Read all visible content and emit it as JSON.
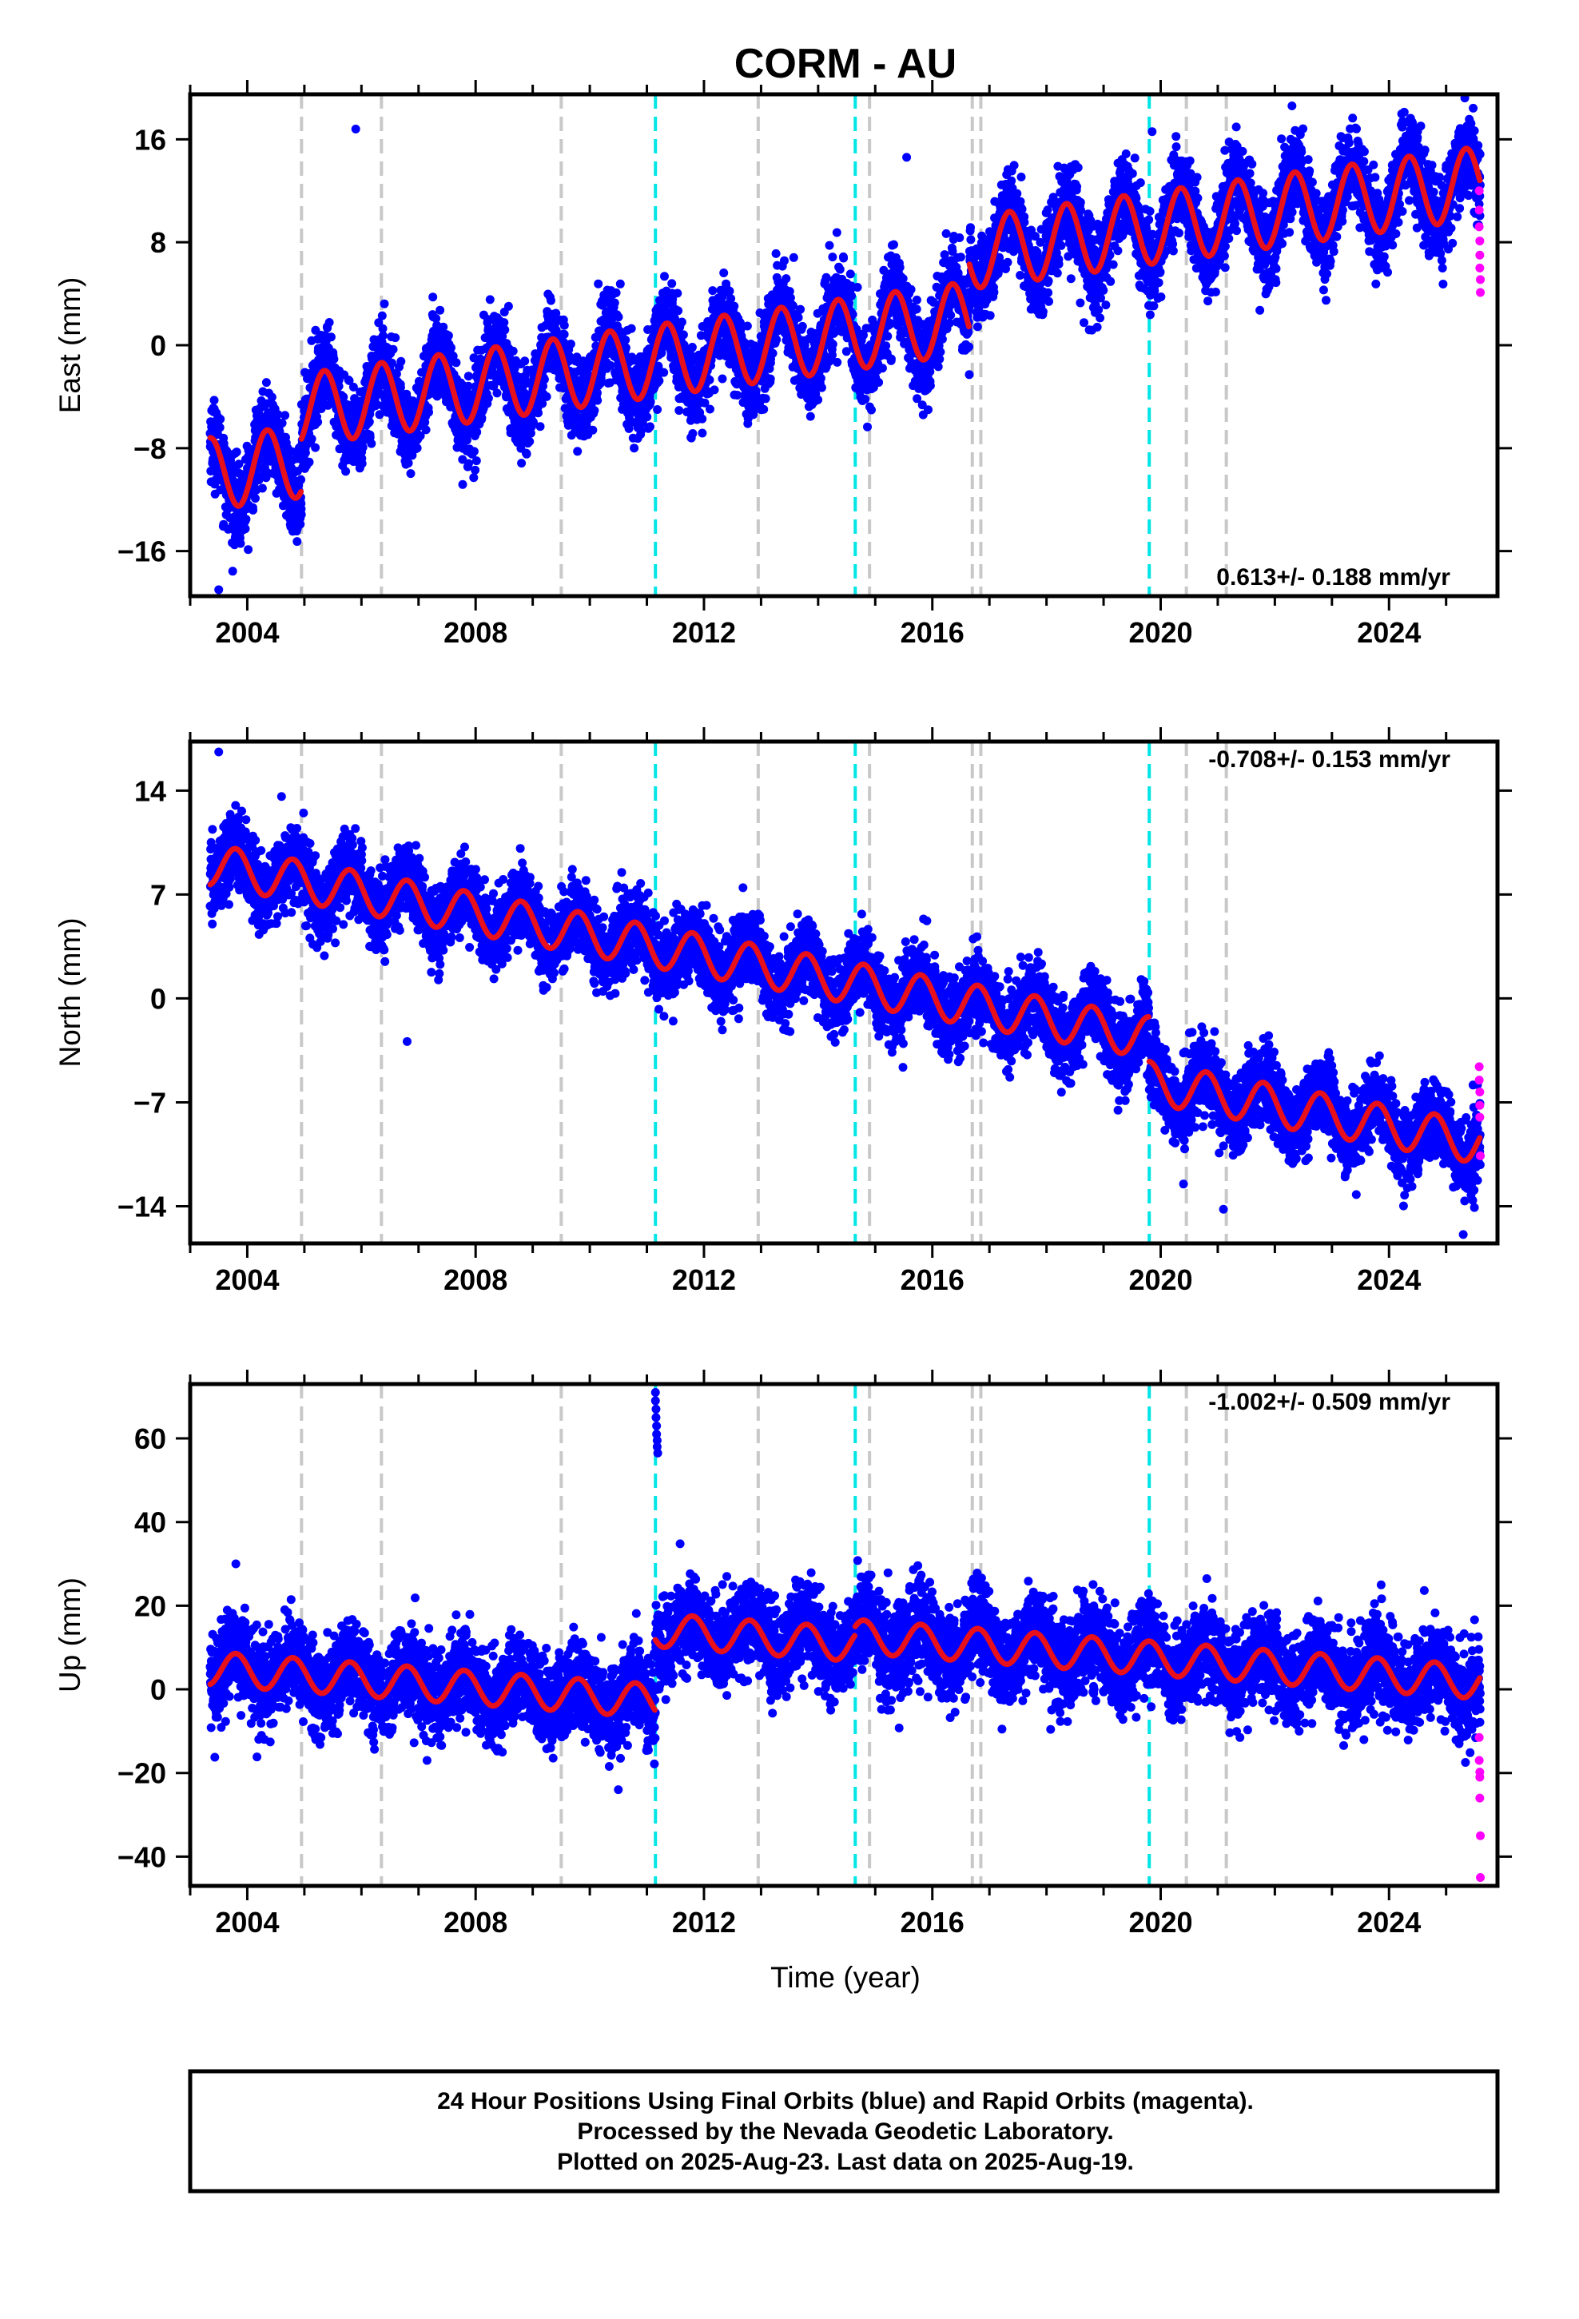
{
  "title": "CORM - AU",
  "xlabel": "Time (year)",
  "colors": {
    "final_orbits": "#0000ff",
    "rapid_orbits": "#ff00ff",
    "model_fit": "#e8101a",
    "equipment_change": "#c8c8c8",
    "earthquake": "#00e5e5"
  },
  "footer": {
    "line1": "24 Hour Positions Using Final Orbits (blue) and Rapid Orbits (magenta).",
    "line2": "Processed by the Nevada Geodetic Laboratory.",
    "line3": "Plotted on 2025-Aug-23. Last data on 2025-Aug-19."
  },
  "chart_data": [
    {
      "type": "scatter",
      "component": "east",
      "ylabel": "East (mm)",
      "ylim": [
        -19.5,
        19.5
      ],
      "yticks": [
        -16,
        -8,
        0,
        8,
        16
      ],
      "xlim": [
        2003.0,
        2025.9
      ],
      "xticks": [
        2004,
        2008,
        2012,
        2016,
        2020,
        2024
      ],
      "rate_label": "0.613+/- 0.188 mm/yr",
      "rate_position": "bottom-right",
      "model": {
        "start": 2003.35,
        "end": 2025.6,
        "trend_start": -10.0,
        "rate": 0.613,
        "annual_amplitude": 2.8,
        "annual_phase_year": 0.1,
        "offsets": [
          {
            "year": 2004.95,
            "value": 4.0
          },
          {
            "year": 2016.65,
            "value": 5.0
          }
        ]
      },
      "scatter": {
        "noise_sd": 1.6,
        "spacing_years": 0.0027
      },
      "rapid_orbits": [
        {
          "x": 2025.58,
          "y": 12.0
        },
        {
          "x": 2025.58,
          "y": 10.5
        },
        {
          "x": 2025.58,
          "y": 9.2
        },
        {
          "x": 2025.59,
          "y": 8.1
        },
        {
          "x": 2025.59,
          "y": 7.0
        },
        {
          "x": 2025.59,
          "y": 6.0
        },
        {
          "x": 2025.6,
          "y": 5.1
        },
        {
          "x": 2025.6,
          "y": 4.1
        }
      ],
      "outliers": [
        {
          "x": 2005.9,
          "y": 16.8
        },
        {
          "x": 2019.85,
          "y": 16.6
        },
        {
          "x": 2022.3,
          "y": 18.6
        },
        {
          "x": 2015.55,
          "y": 14.6
        },
        {
          "x": 2003.5,
          "y": -19.0
        },
        {
          "x": 2021.2,
          "y": 15.8
        }
      ]
    },
    {
      "type": "scatter",
      "component": "north",
      "ylabel": "North (mm)",
      "ylim": [
        -16.5,
        17.3
      ],
      "yticks": [
        -14,
        -7,
        0,
        7,
        14
      ],
      "xlim": [
        2003.0,
        2025.9
      ],
      "xticks": [
        2004,
        2008,
        2012,
        2016,
        2020,
        2024
      ],
      "rate_label": "-0.708+/- 0.153 mm/yr",
      "rate_position": "top-right",
      "model": {
        "start": 2003.35,
        "end": 2025.6,
        "trend_start": 9.0,
        "rate": -0.708,
        "annual_amplitude": 1.4,
        "annual_phase_year": 0.55,
        "offsets": [
          {
            "year": 2019.8,
            "value": -3.0
          }
        ]
      },
      "scatter": {
        "noise_sd": 1.25,
        "spacing_years": 0.0027
      },
      "rapid_orbits": [
        {
          "x": 2025.58,
          "y": -4.6
        },
        {
          "x": 2025.58,
          "y": -5.5
        },
        {
          "x": 2025.59,
          "y": -6.3
        },
        {
          "x": 2025.59,
          "y": -7.2
        },
        {
          "x": 2025.59,
          "y": -8.0
        },
        {
          "x": 2025.6,
          "y": -10.6
        }
      ],
      "outliers": [
        {
          "x": 2003.5,
          "y": 16.6
        },
        {
          "x": 2006.8,
          "y": -2.9
        },
        {
          "x": 2020.4,
          "y": -12.5
        },
        {
          "x": 2021.1,
          "y": -14.2
        },
        {
          "x": 2025.3,
          "y": -15.9
        },
        {
          "x": 2004.6,
          "y": 13.6
        }
      ]
    },
    {
      "type": "scatter",
      "component": "up",
      "ylabel": "Up (mm)",
      "ylim": [
        -47,
        73
      ],
      "yticks": [
        -40,
        -20,
        0,
        20,
        40,
        60
      ],
      "xlim": [
        2003.0,
        2025.9
      ],
      "xticks": [
        2004,
        2008,
        2012,
        2016,
        2020,
        2024
      ],
      "rate_label": "-1.002+/- 0.509 mm/yr",
      "rate_position": "top-right",
      "model": {
        "start": 2003.35,
        "end": 2025.6,
        "trend_start": 5.0,
        "rate": -1.002,
        "annual_amplitude": 4.0,
        "annual_phase_year": 0.55,
        "offsets": [
          {
            "year": 2011.15,
            "value": 17.0
          },
          {
            "year": 2014.65,
            "value": 2.0
          }
        ]
      },
      "scatter": {
        "noise_sd": 5.2,
        "spacing_years": 0.0027
      },
      "rapid_orbits": [
        {
          "x": 2025.58,
          "y": -11.5
        },
        {
          "x": 2025.58,
          "y": -17.0
        },
        {
          "x": 2025.59,
          "y": -19.8
        },
        {
          "x": 2025.59,
          "y": -21.0
        },
        {
          "x": 2025.59,
          "y": -26.0
        },
        {
          "x": 2025.6,
          "y": -35.0
        },
        {
          "x": 2025.6,
          "y": -45.0
        }
      ],
      "outliers": [
        {
          "x": 2011.15,
          "y": 71.0
        },
        {
          "x": 2011.15,
          "y": 69.0
        },
        {
          "x": 2011.16,
          "y": 67.0
        },
        {
          "x": 2011.16,
          "y": 65.0
        },
        {
          "x": 2011.17,
          "y": 63.0
        },
        {
          "x": 2011.17,
          "y": 61.0
        },
        {
          "x": 2011.18,
          "y": 59.5
        },
        {
          "x": 2011.18,
          "y": 58.0
        },
        {
          "x": 2011.19,
          "y": 56.5
        },
        {
          "x": 2003.8,
          "y": 30.0
        },
        {
          "x": 2012.4,
          "y": 27.0
        },
        {
          "x": 2010.5,
          "y": -24.0
        }
      ]
    }
  ],
  "event_lines": {
    "equipment_change": [
      2004.95,
      2006.35,
      2009.5,
      2012.95,
      2014.9,
      2016.7,
      2016.85,
      2020.45,
      2021.15
    ],
    "earthquake": [
      2011.15,
      2014.65,
      2019.8
    ]
  }
}
